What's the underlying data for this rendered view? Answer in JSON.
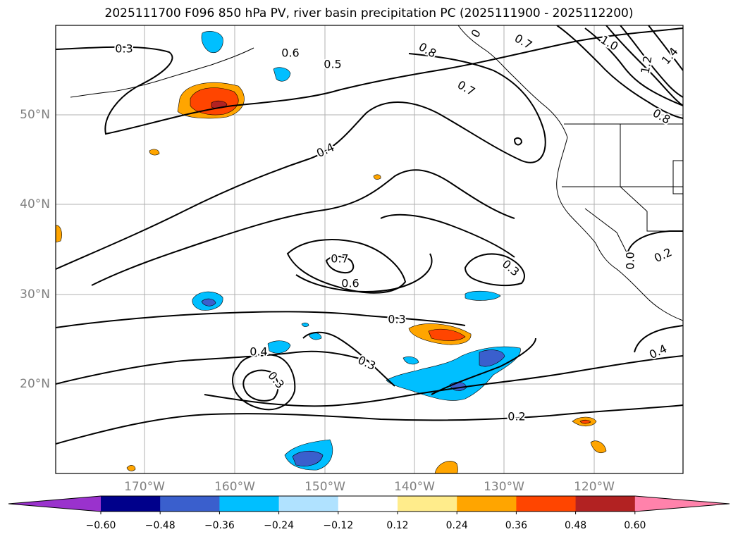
{
  "title": "2025111700 F096 850 hPa PV, river basin precipitation PC (2025111900 - 2025112200)",
  "lat_labels": [
    "50°N",
    "40°N",
    "30°N",
    "20°N"
  ],
  "lon_labels": [
    "170°W",
    "160°W",
    "150°W",
    "140°W",
    "130°W",
    "120°W"
  ],
  "contour_labels": [
    "0.3",
    "0.6",
    "0.5",
    "0.8",
    "0.7",
    "0",
    "0.7",
    "1.0",
    "1.2",
    "1.4",
    "0.8",
    "0.4",
    "0.7",
    "0.6",
    "0.3",
    "0.3",
    "0.3",
    "0.4",
    "0.3",
    "0.2",
    "0.2",
    "0.4",
    "0.0"
  ],
  "colorbar": {
    "ticks": [
      "−0.60",
      "−0.48",
      "−0.36",
      "−0.24",
      "−0.12",
      "0.12",
      "0.24",
      "0.36",
      "0.48",
      "0.60"
    ],
    "colors": [
      "#9a32cd",
      "#00008b",
      "#3a5fcd",
      "#00bfff",
      "#b0e2ff",
      "#ffffff",
      "#ffec8b",
      "#ffa500",
      "#ff4500",
      "#b22222",
      "#ff82ab"
    ]
  }
}
